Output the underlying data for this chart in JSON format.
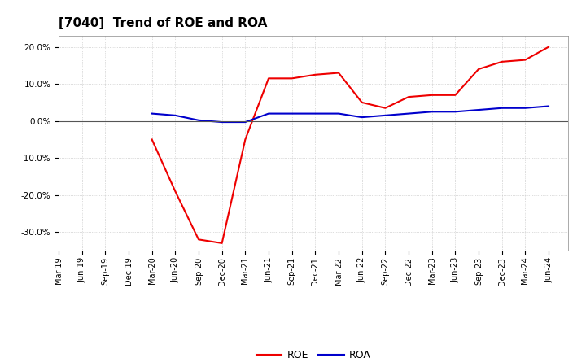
{
  "title": "[7040]  Trend of ROE and ROA",
  "title_fontsize": 11,
  "background_color": "#ffffff",
  "plot_bg_color": "#ffffff",
  "grid_color": "#aaaaaa",
  "x_labels": [
    "Mar-19",
    "Jun-19",
    "Sep-19",
    "Dec-19",
    "Mar-20",
    "Jun-20",
    "Sep-20",
    "Dec-20",
    "Mar-21",
    "Jun-21",
    "Sep-21",
    "Dec-21",
    "Mar-22",
    "Jun-22",
    "Sep-22",
    "Dec-22",
    "Mar-23",
    "Jun-23",
    "Sep-23",
    "Dec-23",
    "Mar-24",
    "Jun-24"
  ],
  "roe_values": [
    null,
    null,
    null,
    null,
    -5.0,
    -19.0,
    -32.0,
    -33.0,
    -5.0,
    11.5,
    11.5,
    12.5,
    13.0,
    5.0,
    3.5,
    6.5,
    7.0,
    7.0,
    14.0,
    16.0,
    16.5,
    20.0
  ],
  "roa_values": [
    null,
    null,
    null,
    null,
    2.0,
    1.5,
    0.2,
    -0.3,
    -0.3,
    2.0,
    2.0,
    2.0,
    2.0,
    1.0,
    1.5,
    2.0,
    2.5,
    2.5,
    3.0,
    3.5,
    3.5,
    4.0
  ],
  "roe_color": "#ee0000",
  "roa_color": "#0000cc",
  "ylim": [
    -35,
    23
  ],
  "yticks": [
    -30,
    -20,
    -10,
    0,
    10,
    20
  ],
  "legend_loc": "lower center",
  "linewidth": 1.5
}
